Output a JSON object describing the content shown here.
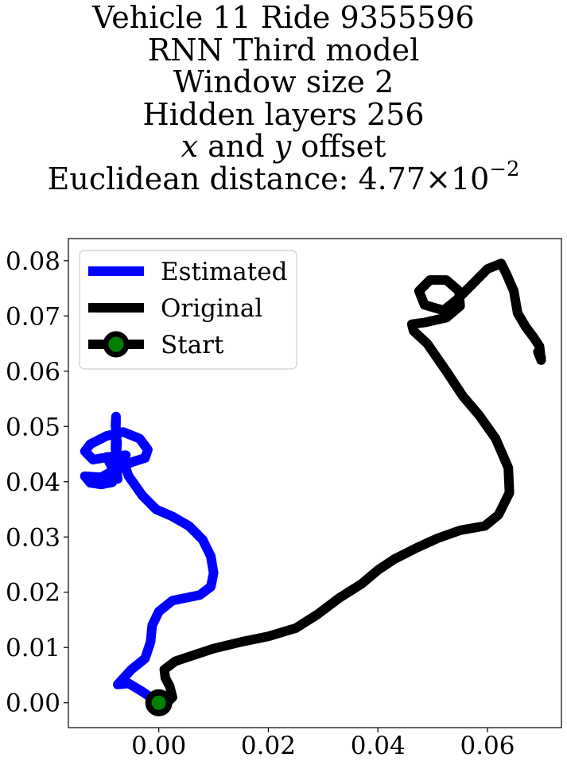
{
  "title": {
    "line1": "Vehicle 11 Ride 9355596",
    "line2": "RNN Third model",
    "line3": "Window size 2",
    "line4": "Hidden layers 256",
    "line5_x": "x",
    "line5_and": " and ",
    "line5_y": "y",
    "line5_rest": " offset",
    "line6_prefix": "Euclidean distance: ",
    "line6_value": "4.77",
    "line6_times": "×",
    "line6_base": "10",
    "line6_exp": "−2"
  },
  "colors": {
    "estimated": "#0000ff",
    "original": "#000000",
    "start_marker_face": "#008000",
    "start_marker_edge": "#000000"
  },
  "chart_data": {
    "type": "line",
    "xlim": [
      -0.0165,
      0.0735
    ],
    "ylim": [
      -0.0045,
      0.084
    ],
    "x_ticks": [
      0.0,
      0.02,
      0.04,
      0.06
    ],
    "x_tick_labels": [
      "0.00",
      "0.02",
      "0.04",
      "0.06"
    ],
    "y_ticks": [
      0.0,
      0.01,
      0.02,
      0.03,
      0.04,
      0.05,
      0.06,
      0.07,
      0.08
    ],
    "y_tick_labels": [
      "0.00",
      "0.01",
      "0.02",
      "0.03",
      "0.04",
      "0.05",
      "0.06",
      "0.07",
      "0.08"
    ],
    "grid": false,
    "legend_position": "top-left",
    "legend": [
      "Estimated",
      "Original",
      "Start"
    ],
    "series": [
      {
        "name": "Estimated",
        "color": "#0000ff",
        "points": [
          [
            0.0,
            0.0
          ],
          [
            -0.003,
            0.002
          ],
          [
            -0.0055,
            0.0035
          ],
          [
            -0.0075,
            0.0033
          ],
          [
            -0.005,
            0.006
          ],
          [
            -0.0025,
            0.008
          ],
          [
            -0.0015,
            0.011
          ],
          [
            -0.0012,
            0.014
          ],
          [
            0.0,
            0.0165
          ],
          [
            0.0025,
            0.0185
          ],
          [
            0.005,
            0.019
          ],
          [
            0.0075,
            0.0195
          ],
          [
            0.0095,
            0.021
          ],
          [
            0.01,
            0.0235
          ],
          [
            0.0095,
            0.0265
          ],
          [
            0.008,
            0.0295
          ],
          [
            0.0055,
            0.032
          ],
          [
            0.0025,
            0.0337
          ],
          [
            -0.0005,
            0.035
          ],
          [
            -0.003,
            0.0375
          ],
          [
            -0.0055,
            0.041
          ],
          [
            -0.0065,
            0.0437
          ],
          [
            -0.0095,
            0.0445
          ],
          [
            -0.0085,
            0.0425
          ],
          [
            -0.0075,
            0.0405
          ],
          [
            -0.0078,
            0.0439
          ],
          [
            -0.0076,
            0.047
          ],
          [
            -0.0079,
            0.0502
          ],
          [
            -0.0078,
            0.0518
          ],
          [
            -0.0078,
            0.0508
          ],
          [
            -0.0079,
            0.046
          ],
          [
            -0.0075,
            0.042
          ],
          [
            -0.0085,
            0.0399
          ],
          [
            -0.0105,
            0.0395
          ],
          [
            -0.0125,
            0.0398
          ],
          [
            -0.0135,
            0.041
          ],
          [
            -0.0105,
            0.0408
          ],
          [
            -0.008,
            0.0422
          ],
          [
            -0.005,
            0.0435
          ],
          [
            -0.0025,
            0.0443
          ],
          [
            -0.002,
            0.0458
          ],
          [
            -0.0035,
            0.0478
          ],
          [
            -0.0065,
            0.049
          ],
          [
            -0.0095,
            0.0483
          ],
          [
            -0.0125,
            0.0468
          ],
          [
            -0.0135,
            0.0455
          ],
          [
            -0.012,
            0.044
          ],
          [
            -0.009,
            0.0445
          ],
          [
            -0.006,
            0.0448
          ]
        ]
      },
      {
        "name": "Original",
        "color": "#000000",
        "points": [
          [
            0.0,
            0.0
          ],
          [
            0.002,
            0.0005
          ],
          [
            0.0025,
            0.001
          ],
          [
            0.002,
            0.003
          ],
          [
            0.0012,
            0.0045
          ],
          [
            0.001,
            0.006
          ],
          [
            0.003,
            0.0075
          ],
          [
            0.006,
            0.0085
          ],
          [
            0.01,
            0.0098
          ],
          [
            0.015,
            0.011
          ],
          [
            0.02,
            0.012
          ],
          [
            0.025,
            0.0135
          ],
          [
            0.029,
            0.016
          ],
          [
            0.033,
            0.019
          ],
          [
            0.037,
            0.0215
          ],
          [
            0.04,
            0.024
          ],
          [
            0.043,
            0.026
          ],
          [
            0.047,
            0.028
          ],
          [
            0.051,
            0.0298
          ],
          [
            0.055,
            0.0312
          ],
          [
            0.0595,
            0.032
          ],
          [
            0.062,
            0.034
          ],
          [
            0.064,
            0.038
          ],
          [
            0.0638,
            0.0425
          ],
          [
            0.0615,
            0.0478
          ],
          [
            0.0585,
            0.052
          ],
          [
            0.0555,
            0.0555
          ],
          [
            0.0525,
            0.06
          ],
          [
            0.049,
            0.065
          ],
          [
            0.0465,
            0.0673
          ],
          [
            0.0462,
            0.0685
          ],
          [
            0.0485,
            0.0688
          ],
          [
            0.0525,
            0.0697
          ],
          [
            0.055,
            0.0718
          ],
          [
            0.0548,
            0.0745
          ],
          [
            0.0525,
            0.0765
          ],
          [
            0.0495,
            0.0765
          ],
          [
            0.0475,
            0.0745
          ],
          [
            0.0485,
            0.072
          ],
          [
            0.052,
            0.071
          ],
          [
            0.0545,
            0.073
          ],
          [
            0.0575,
            0.076
          ],
          [
            0.06,
            0.0785
          ],
          [
            0.0625,
            0.0795
          ],
          [
            0.0635,
            0.0775
          ],
          [
            0.0648,
            0.0745
          ],
          [
            0.0655,
            0.0705
          ],
          [
            0.067,
            0.068
          ],
          [
            0.0685,
            0.066
          ],
          [
            0.0695,
            0.0645
          ],
          [
            0.0698,
            0.062
          ],
          [
            0.0692,
            0.0635
          ],
          [
            0.0698,
            0.0625
          ]
        ]
      }
    ],
    "start_point": [
      0.0,
      0.0
    ]
  }
}
